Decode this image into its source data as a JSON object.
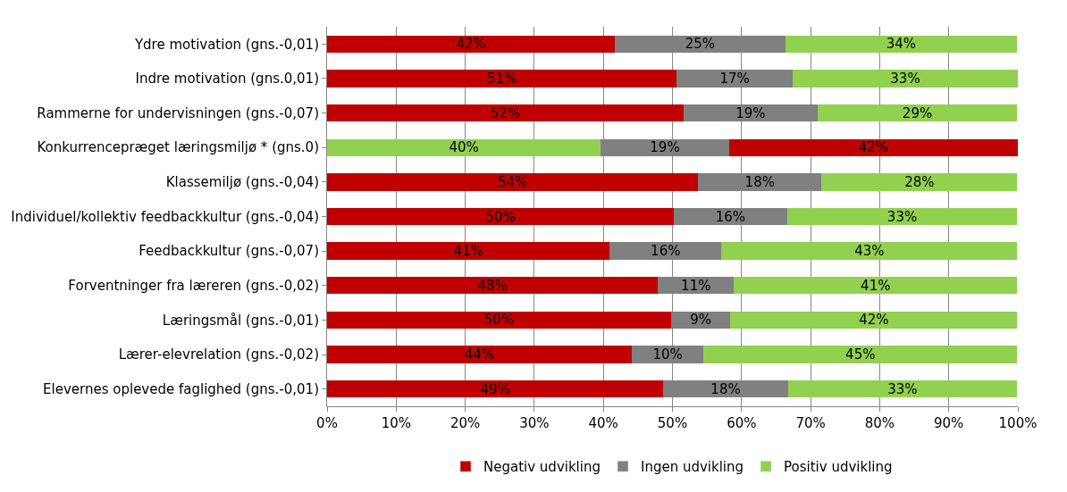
{
  "chart_data": {
    "type": "bar",
    "orientation": "horizontal",
    "stacked": true,
    "categories": [
      "Ydre motivation (gns.-0,01)",
      "Indre motivation (gns.0,01)",
      "Rammerne for undervisningen (gns.-0,07)",
      "Konkurrencepræget læringsmiljø * (gns.0)",
      "Klassemiljø (gns.-0,04)",
      "Individuel/kollektiv feedbackkultur (gns.-0,04)",
      "Feedbackkultur (gns.-0,07)",
      "Forventninger fra læreren (gns.-0,02)",
      "Læringsmål (gns.-0,01)",
      "Lærer-elevrelation (gns.-0,02)",
      "Elevernes oplevede faglighed (gns.-0,01)"
    ],
    "series": [
      {
        "name": "Negativ udvikling",
        "color": "#c00000",
        "colors": [
          "#c00000",
          "#c00000",
          "#c00000",
          "#92d050",
          "#c00000",
          "#c00000",
          "#c00000",
          "#c00000",
          "#c00000",
          "#c00000",
          "#c00000"
        ],
        "values": [
          41.7,
          50.6,
          51.6,
          39.6,
          53.7,
          50.2,
          40.9,
          47.9,
          49.8,
          44.1,
          48.7
        ],
        "value_labels": [
          "42%",
          "51%",
          "52%",
          "40%",
          "54%",
          "50%",
          "41%",
          "48%",
          "50%",
          "44%",
          "49%"
        ]
      },
      {
        "name": "Ingen udvikling",
        "color": "#808080",
        "colors": [
          "#808080",
          "#808080",
          "#808080",
          "#808080",
          "#808080",
          "#808080",
          "#808080",
          "#808080",
          "#808080",
          "#808080",
          "#808080"
        ],
        "values": [
          24.6,
          16.8,
          19.4,
          18.6,
          17.9,
          16.4,
          16.2,
          11.0,
          8.6,
          10.4,
          18.0
        ],
        "value_labels": [
          "25%",
          "17%",
          "19%",
          "19%",
          "18%",
          "16%",
          "16%",
          "11%",
          "9%",
          "10%",
          "18%"
        ]
      },
      {
        "name": "Positiv udvikling",
        "color": "#92d050",
        "colors": [
          "#92d050",
          "#92d050",
          "#92d050",
          "#c00000",
          "#92d050",
          "#92d050",
          "#92d050",
          "#92d050",
          "#92d050",
          "#92d050",
          "#92d050"
        ],
        "values": [
          33.6,
          32.6,
          28.9,
          41.8,
          28.3,
          33.3,
          42.8,
          41.0,
          41.5,
          45.4,
          33.2
        ],
        "value_labels": [
          "34%",
          "33%",
          "29%",
          "42%",
          "28%",
          "33%",
          "43%",
          "41%",
          "42%",
          "45%",
          "33%"
        ]
      }
    ],
    "xlim": [
      0,
      100
    ],
    "xticks": [
      {
        "value": 0,
        "label": "0%"
      },
      {
        "value": 10,
        "label": "10%"
      },
      {
        "value": 20,
        "label": "20%"
      },
      {
        "value": 30,
        "label": "30%"
      },
      {
        "value": 40,
        "label": "40%"
      },
      {
        "value": 50,
        "label": "50%"
      },
      {
        "value": 60,
        "label": "60%"
      },
      {
        "value": 70,
        "label": "70%"
      },
      {
        "value": 80,
        "label": "80%"
      },
      {
        "value": 90,
        "label": "90%"
      },
      {
        "value": 100,
        "label": "100%"
      }
    ],
    "grid": "x",
    "legend": "bottom"
  }
}
